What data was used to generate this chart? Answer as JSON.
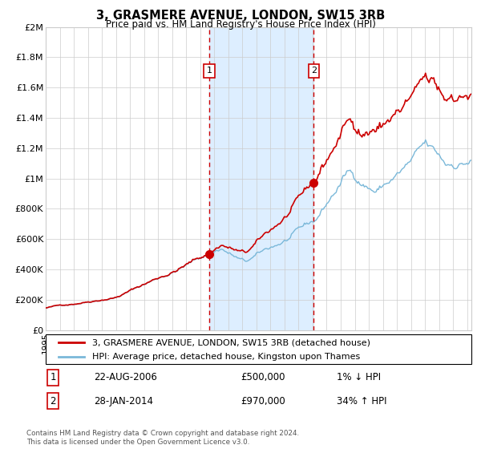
{
  "title": "3, GRASMERE AVENUE, LONDON, SW15 3RB",
  "subtitle": "Price paid vs. HM Land Registry's House Price Index (HPI)",
  "footer": "Contains HM Land Registry data © Crown copyright and database right 2024.\nThis data is licensed under the Open Government Licence v3.0.",
  "legend_line1": "3, GRASMERE AVENUE, LONDON, SW15 3RB (detached house)",
  "legend_line2": "HPI: Average price, detached house, Kingston upon Thames",
  "annotation1_label": "1",
  "annotation1_date": "22-AUG-2006",
  "annotation1_price": "£500,000",
  "annotation1_hpi": "1% ↓ HPI",
  "annotation1_year": 2006.64,
  "annotation2_label": "2",
  "annotation2_date": "28-JAN-2014",
  "annotation2_price": "£970,000",
  "annotation2_hpi": "34% ↑ HPI",
  "annotation2_year": 2014.07,
  "hpi_line_color": "#7ab8d9",
  "price_line_color": "#cc0000",
  "dot_color": "#cc0000",
  "vline_color": "#cc0000",
  "shade_color": "#ddeeff",
  "background_color": "#ffffff",
  "grid_color": "#cccccc",
  "ylim": [
    0,
    2000000
  ],
  "yticks": [
    0,
    200000,
    400000,
    600000,
    800000,
    1000000,
    1200000,
    1400000,
    1600000,
    1800000,
    2000000
  ],
  "ytick_labels": [
    "£0",
    "£200K",
    "£400K",
    "£600K",
    "£800K",
    "£1M",
    "£1.2M",
    "£1.4M",
    "£1.6M",
    "£1.8M",
    "£2M"
  ],
  "start_year": 1995.0,
  "end_year": 2025.3
}
